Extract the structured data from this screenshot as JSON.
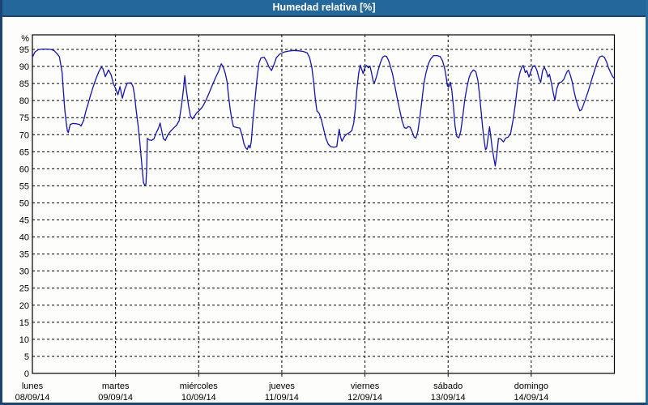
{
  "window": {
    "title": "Humedad relativa [%]",
    "colors": {
      "title_bar_bg": "#24689B",
      "title_text": "#FFFFFF",
      "border_dark": "#1C4473",
      "border_light": "#2B6DA0",
      "chart_bg": "#FDFEFB",
      "grid": "#000000",
      "axis": "#000000",
      "series_line": "#1414AA"
    }
  },
  "chart_data": {
    "type": "line",
    "title": "Humedad relativa [%]",
    "ylabel": "%",
    "legend": "none",
    "grid": {
      "style": "dashed",
      "horizontal": true,
      "vertical": true
    },
    "y_axis": {
      "tick_min": 0,
      "tick_max": 95,
      "tick_step": 5,
      "unit": "%",
      "ylim": [
        0,
        99
      ]
    },
    "x_axis": {
      "days": [
        {
          "name": "lunes",
          "date": "08/09/14"
        },
        {
          "name": "martes",
          "date": "09/09/14"
        },
        {
          "name": "miércoles",
          "date": "10/09/14"
        },
        {
          "name": "jueves",
          "date": "11/09/14"
        },
        {
          "name": "viernes",
          "date": "12/09/14"
        },
        {
          "name": "sábado",
          "date": "13/09/14"
        },
        {
          "name": "domingo",
          "date": "14/09/14"
        }
      ],
      "gridlines_at_days": [
        1,
        2,
        3,
        4,
        5,
        6
      ]
    },
    "series": [
      {
        "name": "Humedad relativa",
        "color": "#1414AA",
        "x_unit": "days_since_mon_0h",
        "points": [
          [
            0,
            92.7
          ],
          [
            0.029,
            94.2
          ],
          [
            0.068,
            94.9
          ],
          [
            0.117,
            95.1
          ],
          [
            0.175,
            95.1
          ],
          [
            0.224,
            95
          ],
          [
            0.263,
            94.6
          ],
          [
            0.302,
            93.6
          ],
          [
            0.325,
            92.8
          ],
          [
            0.358,
            88.2
          ],
          [
            0.373,
            82.7
          ],
          [
            0.39,
            77.3
          ],
          [
            0.407,
            73.4
          ],
          [
            0.422,
            71
          ],
          [
            0.432,
            70.6
          ],
          [
            0.455,
            73
          ],
          [
            0.487,
            73.3
          ],
          [
            0.527,
            73.2
          ],
          [
            0.565,
            73
          ],
          [
            0.585,
            72.5
          ],
          [
            0.617,
            74.2
          ],
          [
            0.643,
            76.9
          ],
          [
            0.673,
            79.3
          ],
          [
            0.702,
            81.8
          ],
          [
            0.731,
            84
          ],
          [
            0.76,
            86.1
          ],
          [
            0.799,
            88.5
          ],
          [
            0.829,
            89.8
          ],
          [
            0.848,
            89.4
          ],
          [
            0.877,
            87
          ],
          [
            0.916,
            89
          ],
          [
            0.946,
            87.6
          ],
          [
            0.975,
            84.9
          ],
          [
            1.004,
            83.3
          ],
          [
            1.029,
            81.7
          ],
          [
            1.053,
            84.1
          ],
          [
            1.082,
            80.7
          ],
          [
            1.111,
            83.3
          ],
          [
            1.141,
            85.1
          ],
          [
            1.189,
            85.2
          ],
          [
            1.209,
            84.2
          ],
          [
            1.228,
            81.8
          ],
          [
            1.248,
            77.2
          ],
          [
            1.272,
            72.5
          ],
          [
            1.287,
            69.1
          ],
          [
            1.316,
            61.2
          ],
          [
            1.336,
            56
          ],
          [
            1.35,
            55.2
          ],
          [
            1.365,
            55.4
          ],
          [
            1.375,
            60
          ],
          [
            1.382,
            68.9
          ],
          [
            1.404,
            68.5
          ],
          [
            1.433,
            68.3
          ],
          [
            1.462,
            68.8
          ],
          [
            1.491,
            70.6
          ],
          [
            1.516,
            71.9
          ],
          [
            1.536,
            73.4
          ],
          [
            1.555,
            71.2
          ],
          [
            1.575,
            68.8
          ],
          [
            1.599,
            68.3
          ],
          [
            1.628,
            69.9
          ],
          [
            1.657,
            70.9
          ],
          [
            1.696,
            71.9
          ],
          [
            1.735,
            72.8
          ],
          [
            1.765,
            74.1
          ],
          [
            1.794,
            78.6
          ],
          [
            1.818,
            83.5
          ],
          [
            1.833,
            87.3
          ],
          [
            1.852,
            83
          ],
          [
            1.877,
            78.6
          ],
          [
            1.901,
            75.5
          ],
          [
            1.925,
            74.6
          ],
          [
            1.95,
            75.5
          ],
          [
            1.979,
            76.5
          ],
          [
            2.008,
            77.1
          ],
          [
            2.047,
            78.2
          ],
          [
            2.086,
            80
          ],
          [
            2.125,
            82.2
          ],
          [
            2.164,
            84.5
          ],
          [
            2.203,
            86.7
          ],
          [
            2.242,
            88.7
          ],
          [
            2.272,
            90.8
          ],
          [
            2.296,
            89.8
          ],
          [
            2.32,
            88
          ],
          [
            2.34,
            85.7
          ],
          [
            2.359,
            81.5
          ],
          [
            2.379,
            77.4
          ],
          [
            2.398,
            74.6
          ],
          [
            2.418,
            72.4
          ],
          [
            2.457,
            72.1
          ],
          [
            2.496,
            71.9
          ],
          [
            2.525,
            69.5
          ],
          [
            2.545,
            67.3
          ],
          [
            2.564,
            66.2
          ],
          [
            2.584,
            65.7
          ],
          [
            2.603,
            66.9
          ],
          [
            2.618,
            66.1
          ],
          [
            2.632,
            68
          ],
          [
            2.652,
            74
          ],
          [
            2.676,
            80
          ],
          [
            2.7,
            86
          ],
          [
            2.725,
            91
          ],
          [
            2.749,
            92.5
          ],
          [
            2.788,
            92.7
          ],
          [
            2.817,
            91.5
          ],
          [
            2.847,
            89.8
          ],
          [
            2.876,
            88.8
          ],
          [
            2.905,
            90.5
          ],
          [
            2.934,
            92.6
          ],
          [
            2.973,
            93.6
          ],
          [
            3.022,
            94.2
          ],
          [
            3.081,
            94.5
          ],
          [
            3.139,
            94.7
          ],
          [
            3.198,
            94.6
          ],
          [
            3.256,
            94.4
          ],
          [
            3.305,
            94
          ],
          [
            3.334,
            92.6
          ],
          [
            3.359,
            90
          ],
          [
            3.383,
            85.5
          ],
          [
            3.403,
            80.5
          ],
          [
            3.422,
            77
          ],
          [
            3.451,
            76.2
          ],
          [
            3.476,
            74.3
          ],
          [
            3.5,
            71.9
          ],
          [
            3.529,
            69
          ],
          [
            3.559,
            67.2
          ],
          [
            3.588,
            66.5
          ],
          [
            3.627,
            66.3
          ],
          [
            3.661,
            66.5
          ],
          [
            3.68,
            70
          ],
          [
            3.69,
            71.6
          ],
          [
            3.705,
            69.4
          ],
          [
            3.724,
            68.1
          ],
          [
            3.754,
            69.5
          ],
          [
            3.783,
            70.2
          ],
          [
            3.812,
            70.6
          ],
          [
            3.841,
            71.2
          ],
          [
            3.866,
            73.5
          ],
          [
            3.885,
            78
          ],
          [
            3.904,
            83.5
          ],
          [
            3.924,
            88
          ],
          [
            3.944,
            90.4
          ],
          [
            3.963,
            89
          ],
          [
            3.978,
            87.9
          ],
          [
            3.997,
            89.5
          ],
          [
            4.017,
            90.3
          ],
          [
            4.041,
            89.6
          ],
          [
            4.061,
            90.1
          ],
          [
            4.08,
            88
          ],
          [
            4.1,
            85.6
          ],
          [
            4.114,
            85.2
          ],
          [
            4.139,
            87
          ],
          [
            4.163,
            89.3
          ],
          [
            4.187,
            91.2
          ],
          [
            4.212,
            92.7
          ],
          [
            4.236,
            93.1
          ],
          [
            4.261,
            92.9
          ],
          [
            4.285,
            91.7
          ],
          [
            4.309,
            89.8
          ],
          [
            4.334,
            87.5
          ],
          [
            4.358,
            84.5
          ],
          [
            4.387,
            80.8
          ],
          [
            4.417,
            77.3
          ],
          [
            4.446,
            74
          ],
          [
            4.475,
            72
          ],
          [
            4.5,
            71.9
          ],
          [
            4.519,
            72.4
          ],
          [
            4.543,
            72.2
          ],
          [
            4.568,
            70.8
          ],
          [
            4.592,
            69.3
          ],
          [
            4.612,
            69
          ],
          [
            4.636,
            71
          ],
          [
            4.66,
            75
          ],
          [
            4.685,
            80
          ],
          [
            4.709,
            85
          ],
          [
            4.733,
            88
          ],
          [
            4.763,
            90.8
          ],
          [
            4.792,
            92.3
          ],
          [
            4.826,
            93.2
          ],
          [
            4.865,
            93.2
          ],
          [
            4.904,
            92.9
          ],
          [
            4.933,
            91.7
          ],
          [
            4.958,
            89.5
          ],
          [
            4.977,
            86.8
          ],
          [
            4.992,
            84.3
          ],
          [
            5.006,
            83.9
          ],
          [
            5.026,
            85.4
          ],
          [
            5.045,
            83
          ],
          [
            5.065,
            78
          ],
          [
            5.084,
            72.5
          ],
          [
            5.104,
            69.5
          ],
          [
            5.128,
            69.1
          ],
          [
            5.152,
            71
          ],
          [
            5.177,
            75.5
          ],
          [
            5.201,
            80.3
          ],
          [
            5.226,
            83.8
          ],
          [
            5.25,
            86.6
          ],
          [
            5.274,
            88.1
          ],
          [
            5.304,
            89
          ],
          [
            5.333,
            88.5
          ],
          [
            5.357,
            86
          ],
          [
            5.377,
            82
          ],
          [
            5.396,
            77
          ],
          [
            5.416,
            72
          ],
          [
            5.435,
            68
          ],
          [
            5.45,
            65.6
          ],
          [
            5.464,
            66
          ],
          [
            5.484,
            69.8
          ],
          [
            5.499,
            72.3
          ],
          [
            5.513,
            69.5
          ],
          [
            5.528,
            66.5
          ],
          [
            5.547,
            63.5
          ],
          [
            5.567,
            60.8
          ],
          [
            5.587,
            64.5
          ],
          [
            5.606,
            68.9
          ],
          [
            5.635,
            68.7
          ],
          [
            5.665,
            67.9
          ],
          [
            5.694,
            69
          ],
          [
            5.723,
            69.3
          ],
          [
            5.752,
            70.4
          ],
          [
            5.782,
            74.4
          ],
          [
            5.811,
            79.5
          ],
          [
            5.84,
            85.5
          ],
          [
            5.865,
            88.3
          ],
          [
            5.889,
            90
          ],
          [
            5.904,
            90.3
          ],
          [
            5.928,
            88.2
          ],
          [
            5.947,
            88.8
          ],
          [
            5.972,
            86.9
          ],
          [
            5.996,
            88.5
          ],
          [
            6.02,
            90.1
          ],
          [
            6.045,
            90.2
          ],
          [
            6.069,
            88.8
          ],
          [
            6.093,
            86.6
          ],
          [
            6.113,
            85.3
          ],
          [
            6.137,
            88.8
          ],
          [
            6.157,
            89.8
          ],
          [
            6.181,
            88.6
          ],
          [
            6.201,
            86.9
          ],
          [
            6.22,
            87.7
          ],
          [
            6.245,
            84.8
          ],
          [
            6.264,
            82.3
          ],
          [
            6.284,
            80.1
          ],
          [
            6.308,
            83.5
          ],
          [
            6.332,
            85.2
          ],
          [
            6.366,
            85.5
          ],
          [
            6.391,
            86.2
          ],
          [
            6.41,
            87.3
          ],
          [
            6.434,
            88.6
          ],
          [
            6.449,
            88.9
          ],
          [
            6.468,
            87.6
          ],
          [
            6.488,
            86
          ],
          [
            6.512,
            83
          ],
          [
            6.536,
            80.5
          ],
          [
            6.561,
            78.5
          ],
          [
            6.585,
            77
          ],
          [
            6.605,
            77.3
          ],
          [
            6.629,
            78.8
          ],
          [
            6.658,
            80.8
          ],
          [
            6.688,
            83
          ],
          [
            6.717,
            85.4
          ],
          [
            6.746,
            87.6
          ],
          [
            6.775,
            89.9
          ],
          [
            6.799,
            91.7
          ],
          [
            6.824,
            92.8
          ],
          [
            6.853,
            93.1
          ],
          [
            6.882,
            92.6
          ],
          [
            6.906,
            91.3
          ],
          [
            6.931,
            89.5
          ],
          [
            6.955,
            88.2
          ],
          [
            6.98,
            87
          ],
          [
            7,
            86.5
          ]
        ]
      }
    ]
  }
}
